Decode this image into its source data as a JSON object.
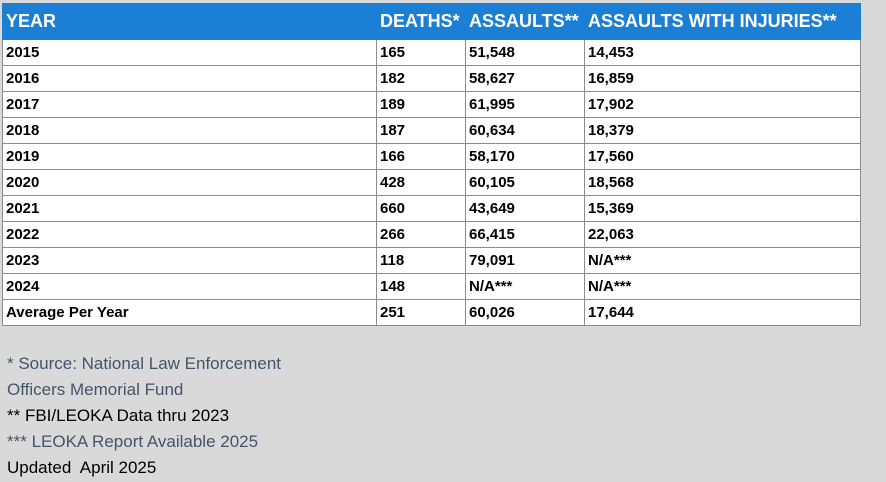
{
  "table": {
    "columns": [
      "YEAR",
      "DEATHS*",
      "ASSAULTS**",
      "ASSAULTS WITH INJURIES**"
    ],
    "rows": [
      [
        "2015",
        "165",
        "51,548",
        "14,453"
      ],
      [
        "2016",
        "182",
        "58,627",
        "16,859"
      ],
      [
        "2017",
        "189",
        "61,995",
        "17,902"
      ],
      [
        "2018",
        "187",
        "60,634",
        "18,379"
      ],
      [
        "2019",
        "166",
        "58,170",
        "17,560"
      ],
      [
        "2020",
        "428",
        "60,105",
        "18,568"
      ],
      [
        "2021",
        "660",
        "43,649",
        "15,369"
      ],
      [
        "2022",
        "266",
        "66,415",
        "22,063"
      ],
      [
        "2023",
        "118",
        "79,091",
        "N/A***"
      ],
      [
        "2024",
        "148",
        "N/A***",
        "N/A***"
      ],
      [
        "Average Per Year",
        "251",
        "60,026",
        "17,644"
      ]
    ]
  },
  "notes": [
    "* Source: National Law Enforcement",
    "Officers Memorial Fund",
    "** FBI/LEOKA Data thru 2023",
    "*** LEOKA Report Available 2025",
    "Updated  April 2025"
  ]
}
